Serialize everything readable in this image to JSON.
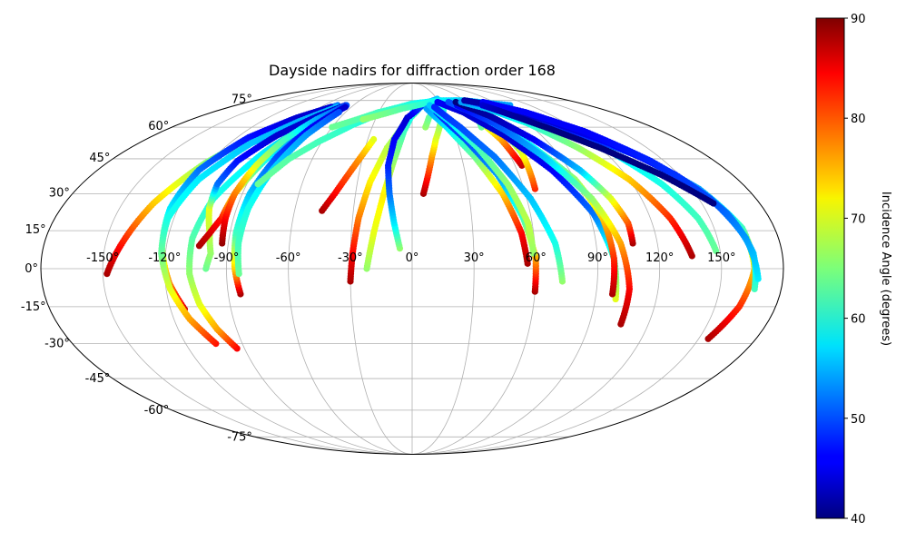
{
  "chart_data": {
    "type": "scatter",
    "projection": "mollweide",
    "title": "Dayside nadirs for diffraction order 168",
    "xlabel": "",
    "ylabel": "",
    "lon_ticks": [
      -150,
      -120,
      -90,
      -60,
      -30,
      0,
      30,
      60,
      90,
      120,
      150
    ],
    "lon_tick_labels": [
      "-150°",
      "-120°",
      "-90°",
      "-60°",
      "-30°",
      "0°",
      "30°",
      "60°",
      "90°",
      "120°",
      "150°"
    ],
    "lat_ticks": [
      -75,
      -60,
      -45,
      -30,
      -15,
      0,
      15,
      30,
      45,
      60,
      75
    ],
    "lat_tick_labels": [
      "-75°",
      "-60°",
      "-45°",
      "-30°",
      "-15°",
      "0°",
      "15°",
      "30°",
      "45°",
      "60°",
      "75°"
    ],
    "xlim": [
      -180,
      180
    ],
    "ylim": [
      -90,
      90
    ],
    "grid": true,
    "colorbar": {
      "label": "Incidence Angle (degrees)",
      "colormap": "jet",
      "range": [
        40,
        90
      ],
      "ticks": [
        40,
        50,
        60,
        70,
        80,
        90
      ],
      "tick_labels": [
        "40",
        "50",
        "60",
        "70",
        "80",
        "90"
      ]
    },
    "tracks": [
      {
        "lon": [
          -148,
          -143,
          -134,
          -122,
          -108,
          -92,
          -76
        ],
        "lat": [
          -2,
          8,
          26,
          43,
          56,
          66,
          72
        ],
        "inc": [
          88,
          84,
          74,
          66,
          60,
          55,
          52
        ]
      },
      {
        "lon": [
          -113,
          -118,
          -122,
          -124,
          -122,
          -112,
          -96,
          -80
        ],
        "lat": [
          -16,
          -6,
          8,
          24,
          40,
          55,
          65,
          71
        ],
        "inc": [
          86,
          78,
          66,
          58,
          52,
          47,
          44,
          44
        ]
      },
      {
        "lon": [
          -104,
          -112,
          -118,
          -122,
          -123,
          -118,
          -106,
          -90,
          -74
        ],
        "lat": [
          -30,
          -20,
          -8,
          6,
          20,
          36,
          52,
          63,
          71
        ],
        "inc": [
          83,
          76,
          70,
          64,
          60,
          58,
          56,
          55,
          56
        ]
      },
      {
        "lon": [
          -94,
          -100,
          -105,
          -108,
          -108,
          -104,
          -92,
          -78
        ],
        "lat": [
          -32,
          -24,
          -14,
          -2,
          12,
          28,
          48,
          64
        ],
        "inc": [
          84,
          76,
          70,
          66,
          63,
          60,
          58,
          55
        ]
      },
      {
        "lon": [
          -100,
          -98,
          -100,
          -104,
          -106,
          -104,
          -94,
          -80,
          -68
        ],
        "lat": [
          0,
          6,
          14,
          24,
          34,
          44,
          56,
          66,
          72
        ],
        "inc": [
          64,
          66,
          68,
          70,
          52,
          47,
          44,
          44,
          44
        ]
      },
      {
        "lon": [
          -104,
          -100,
          -96,
          -94,
          -88,
          -80,
          -70
        ],
        "lat": [
          9,
          14,
          20,
          30,
          44,
          58,
          69
        ],
        "inc": [
          88,
          86,
          83,
          72,
          60,
          52,
          48
        ]
      },
      {
        "lon": [
          -93,
          -94,
          -94,
          -91,
          -86,
          -78,
          -67
        ],
        "lat": [
          10,
          20,
          30,
          42,
          54,
          64,
          72
        ],
        "inc": [
          89,
          84,
          78,
          70,
          62,
          55,
          50
        ]
      },
      {
        "lon": [
          -84,
          -86,
          -87,
          -86,
          -82,
          -75,
          -66
        ],
        "lat": [
          -10,
          0,
          14,
          30,
          46,
          60,
          71
        ],
        "inc": [
          88,
          74,
          62,
          56,
          50,
          46,
          44
        ]
      },
      {
        "lon": [
          -84,
          -85,
          -84,
          -80,
          -74,
          -66
        ],
        "lat": [
          -2,
          10,
          24,
          40,
          56,
          68
        ],
        "inc": [
          64,
          62,
          60,
          57,
          54,
          50
        ]
      },
      {
        "lon": [
          -84,
          -74,
          -62,
          -46,
          -30
        ],
        "lat": [
          34,
          45,
          53,
          61,
          67
        ],
        "inc": [
          64,
          63,
          62,
          61,
          60
        ]
      },
      {
        "lon": [
          -46,
          -41,
          -36,
          -31,
          -26
        ],
        "lat": [
          23,
          30,
          38,
          46,
          54
        ],
        "inc": [
          88,
          84,
          80,
          76,
          70
        ]
      },
      {
        "lon": [
          -30,
          -29,
          -27,
          -23,
          -16,
          -6,
          8,
          24
        ],
        "lat": [
          -5,
          6,
          20,
          35,
          50,
          62,
          71,
          74
        ],
        "inc": [
          88,
          84,
          78,
          72,
          68,
          64,
          60,
          58
        ]
      },
      {
        "lon": [
          -22,
          -19,
          -15,
          -11,
          -6,
          2
        ],
        "lat": [
          0,
          14,
          30,
          44,
          58,
          70
        ],
        "inc": [
          66,
          70,
          72,
          66,
          62,
          58
        ]
      },
      {
        "lon": [
          -6,
          -9,
          -12,
          -14,
          -12,
          -4,
          12,
          30
        ],
        "lat": [
          8,
          18,
          30,
          42,
          54,
          65,
          73,
          76
        ],
        "inc": [
          66,
          58,
          52,
          48,
          46,
          44,
          50,
          56
        ]
      },
      {
        "lon": [
          -60,
          -30,
          0,
          30,
          60,
          100
        ],
        "lat": [
          60,
          68,
          73,
          75,
          75,
          72
        ],
        "inc": [
          64,
          62,
          60,
          58,
          56,
          54
        ]
      },
      {
        "lon": [
          -40,
          -10,
          20,
          50,
          80
        ],
        "lat": [
          64,
          70,
          74,
          75,
          73
        ],
        "inc": [
          66,
          63,
          60,
          57,
          55
        ]
      },
      {
        "lon": [
          6,
          9,
          12,
          16,
          22,
          30
        ],
        "lat": [
          30,
          38,
          46,
          54,
          62,
          70
        ],
        "inc": [
          88,
          82,
          76,
          70,
          66,
          60
        ]
      },
      {
        "lon": [
          10,
          14,
          20,
          28,
          38
        ],
        "lat": [
          60,
          65,
          69,
          72,
          74
        ],
        "inc": [
          66,
          64,
          62,
          60,
          58
        ]
      },
      {
        "lon": [
          56,
          54,
          48,
          38,
          26,
          14
        ],
        "lat": [
          2,
          14,
          30,
          46,
          60,
          70
        ],
        "inc": [
          88,
          84,
          74,
          64,
          58,
          54
        ]
      },
      {
        "lon": [
          60,
          60,
          56,
          48,
          36,
          22
        ],
        "lat": [
          -9,
          4,
          20,
          38,
          54,
          68
        ],
        "inc": [
          88,
          76,
          62,
          54,
          50,
          48
        ]
      },
      {
        "lon": [
          59,
          58,
          52,
          42,
          30,
          18
        ],
        "lat": [
          6,
          18,
          34,
          50,
          63,
          72
        ],
        "inc": [
          66,
          68,
          66,
          62,
          58,
          56
        ]
      },
      {
        "lon": [
          73,
          70,
          62,
          50,
          36,
          22
        ],
        "lat": [
          -5,
          10,
          28,
          46,
          60,
          71
        ],
        "inc": [
          66,
          60,
          56,
          52,
          50,
          48
        ]
      },
      {
        "lon": [
          64,
          62,
          60,
          56,
          52
        ],
        "lat": [
          42,
          48,
          54,
          60,
          66
        ],
        "inc": [
          87,
          82,
          76,
          70,
          64
        ]
      },
      {
        "lon": [
          66,
          67,
          68,
          66,
          62
        ],
        "lat": [
          32,
          40,
          48,
          56,
          64
        ],
        "inc": [
          82,
          76,
          70,
          64,
          58
        ]
      },
      {
        "lon": [
          52,
          54,
          56,
          54
        ],
        "lat": [
          60,
          64,
          68,
          72
        ],
        "inc": [
          64,
          62,
          60,
          58
        ]
      },
      {
        "lon": [
          100,
          98,
          92,
          80,
          64,
          46,
          28
        ],
        "lat": [
          -12,
          4,
          22,
          40,
          56,
          68,
          74
        ],
        "inc": [
          70,
          62,
          52,
          46,
          44,
          44,
          46
        ]
      },
      {
        "lon": [
          98,
          98,
          96,
          90,
          76,
          58,
          40
        ],
        "lat": [
          -10,
          4,
          20,
          36,
          52,
          66,
          74
        ],
        "inc": [
          88,
          82,
          74,
          66,
          58,
          52,
          50
        ]
      },
      {
        "lon": [
          106,
          106,
          102,
          94,
          80,
          64,
          46
        ],
        "lat": [
          -22,
          -8,
          10,
          28,
          46,
          62,
          72
        ],
        "inc": [
          88,
          84,
          76,
          66,
          56,
          50,
          46
        ]
      },
      {
        "lon": [
          108,
          108,
          104,
          96,
          82,
          66,
          48
        ],
        "lat": [
          10,
          18,
          28,
          40,
          54,
          66,
          74
        ],
        "inc": [
          88,
          80,
          70,
          56,
          46,
          42,
          40
        ]
      },
      {
        "lon": [
          136,
          130,
          120,
          106,
          90,
          72,
          54
        ],
        "lat": [
          5,
          20,
          36,
          50,
          62,
          70,
          74
        ],
        "inc": [
          88,
          82,
          74,
          66,
          60,
          56,
          54
        ]
      },
      {
        "lon": [
          148,
          144,
          136,
          124,
          108,
          88,
          66
        ],
        "lat": [
          7,
          20,
          34,
          48,
          60,
          70,
          74
        ],
        "inc": [
          64,
          62,
          60,
          58,
          56,
          54,
          52
        ]
      },
      {
        "lon": [
          155,
          162,
          166,
          164,
          154,
          138,
          116,
          90,
          66
        ],
        "lat": [
          -28,
          -15,
          0,
          16,
          32,
          46,
          58,
          68,
          74
        ],
        "inc": [
          88,
          82,
          74,
          62,
          54,
          50,
          48,
          48,
          50
        ]
      },
      {
        "lon": [
          167,
          166,
          160,
          148,
          130,
          108,
          84,
          60
        ],
        "lat": [
          -8,
          6,
          22,
          38,
          52,
          64,
          72,
          75
        ],
        "inc": [
          62,
          56,
          52,
          48,
          46,
          44,
          42,
          42
        ]
      },
      {
        "lon": [
          168,
          164,
          156,
          142,
          124,
          102,
          78
        ],
        "lat": [
          -4,
          12,
          28,
          44,
          58,
          68,
          74
        ],
        "inc": [
          58,
          54,
          50,
          48,
          46,
          46,
          46
        ]
      },
      {
        "lon": [
          72,
          82,
          100,
          120,
          140,
          156
        ],
        "lat": [
          72,
          68,
          60,
          50,
          38,
          26
        ],
        "inc": [
          44,
          42,
          40,
          40,
          40,
          40
        ]
      }
    ]
  }
}
